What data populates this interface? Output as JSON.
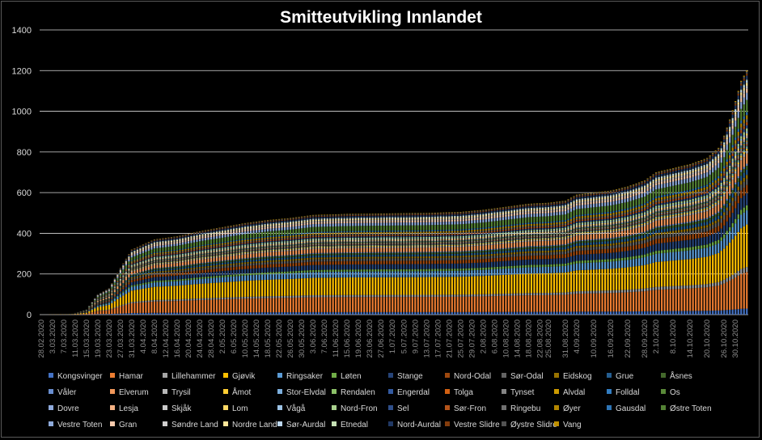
{
  "chart_data": {
    "type": "bar",
    "stacked": true,
    "title": "Smitteutvikling Innlandet",
    "xlabel": "",
    "ylabel": "",
    "ylim": [
      0,
      1400
    ],
    "yticks": [
      0,
      200,
      400,
      600,
      800,
      1000,
      1200,
      1400
    ],
    "grid": "horizontal",
    "legend_position": "bottom",
    "x_start": "2020-02-28",
    "x_end": "2020-11-03",
    "xtick_labels": [
      "28.02.2020",
      "3.03.2020",
      "7.03.2020",
      "11.03.2020",
      "15.03.2020",
      "19.03.2020",
      "23.03.2020",
      "27.03.2020",
      "31.03.2020",
      "4.04.2020",
      "8.04.2020",
      "12.04.2020",
      "16.04.2020",
      "20.04.2020",
      "24.04.2020",
      "28.04.2020",
      "2.05.2020",
      "6.05.2020",
      "10.05.2020",
      "14.05.2020",
      "18.05.2020",
      "22.05.2020",
      "26.05.2020",
      "30.05.2020",
      "3.06.2020",
      "7.06.2020",
      "11.06.2020",
      "15.06.2020",
      "19.06.2020",
      "23.06.2020",
      "27.06.2020",
      "1.07.2020",
      "5.07.2020",
      "9.07.2020",
      "13.07.2020",
      "17.07.2020",
      "21.07.2020",
      "25.07.2020",
      "29.07.2020",
      "2.08.2020",
      "6.08.2020",
      "10.08.2020",
      "14.08.2020",
      "18.08.2020",
      "22.08.2020",
      "25.08.2020",
      "31.08.2020",
      "4.09.2020",
      "10.09.2020",
      "16.09.2020",
      "22.09.2020",
      "28.09.2020",
      "2.10.2020",
      "8.10.2020",
      "14.10.2020",
      "20.10.2020",
      "26.10.2020",
      "30.10.2020"
    ],
    "total_cumulative_cases": [
      {
        "date": "2020-02-28",
        "value": 0
      },
      {
        "date": "2020-03-10",
        "value": 5
      },
      {
        "date": "2020-03-15",
        "value": 25
      },
      {
        "date": "2020-03-19",
        "value": 100
      },
      {
        "date": "2020-03-23",
        "value": 130
      },
      {
        "date": "2020-03-27",
        "value": 230
      },
      {
        "date": "2020-03-31",
        "value": 320
      },
      {
        "date": "2020-04-04",
        "value": 345
      },
      {
        "date": "2020-04-08",
        "value": 370
      },
      {
        "date": "2020-04-16",
        "value": 385
      },
      {
        "date": "2020-04-24",
        "value": 410
      },
      {
        "date": "2020-05-02",
        "value": 430
      },
      {
        "date": "2020-05-10",
        "value": 450
      },
      {
        "date": "2020-05-18",
        "value": 465
      },
      {
        "date": "2020-05-26",
        "value": 475
      },
      {
        "date": "2020-06-03",
        "value": 490
      },
      {
        "date": "2020-06-15",
        "value": 495
      },
      {
        "date": "2020-07-01",
        "value": 498
      },
      {
        "date": "2020-07-13",
        "value": 500
      },
      {
        "date": "2020-07-25",
        "value": 505
      },
      {
        "date": "2020-08-02",
        "value": 515
      },
      {
        "date": "2020-08-10",
        "value": 530
      },
      {
        "date": "2020-08-18",
        "value": 545
      },
      {
        "date": "2020-08-25",
        "value": 550
      },
      {
        "date": "2020-08-31",
        "value": 560
      },
      {
        "date": "2020-09-04",
        "value": 590
      },
      {
        "date": "2020-09-10",
        "value": 600
      },
      {
        "date": "2020-09-16",
        "value": 610
      },
      {
        "date": "2020-09-22",
        "value": 630
      },
      {
        "date": "2020-09-28",
        "value": 660
      },
      {
        "date": "2020-10-02",
        "value": 700
      },
      {
        "date": "2020-10-08",
        "value": 720
      },
      {
        "date": "2020-10-14",
        "value": 740
      },
      {
        "date": "2020-10-20",
        "value": 770
      },
      {
        "date": "2020-10-24",
        "value": 820
      },
      {
        "date": "2020-10-26",
        "value": 880
      },
      {
        "date": "2020-10-28",
        "value": 960
      },
      {
        "date": "2020-10-30",
        "value": 1050
      },
      {
        "date": "2020-11-01",
        "value": 1150
      },
      {
        "date": "2020-11-03",
        "value": 1200
      }
    ],
    "series": [
      {
        "name": "Kongsvinger",
        "color": "#4472c4",
        "final": 30
      },
      {
        "name": "Hamar",
        "color": "#ed7d31",
        "final": 180
      },
      {
        "name": "Lillehammer",
        "color": "#a5a5a5",
        "final": 25
      },
      {
        "name": "Gjøvik",
        "color": "#ffc000",
        "final": 210
      },
      {
        "name": "Ringsaker",
        "color": "#5b9bd5",
        "final": 70
      },
      {
        "name": "Løten",
        "color": "#70ad47",
        "final": 25
      },
      {
        "name": "Stange",
        "color": "#264478",
        "final": 60
      },
      {
        "name": "Nord-Odal",
        "color": "#9e480e",
        "final": 40
      },
      {
        "name": "Sør-Odal",
        "color": "#636363",
        "final": 30
      },
      {
        "name": "Eidskog",
        "color": "#997300",
        "final": 20
      },
      {
        "name": "Grue",
        "color": "#255e91",
        "final": 25
      },
      {
        "name": "Åsnes",
        "color": "#43682b",
        "final": 20
      },
      {
        "name": "Våler",
        "color": "#698ed0",
        "final": 10
      },
      {
        "name": "Elverum",
        "color": "#f1975a",
        "final": 50
      },
      {
        "name": "Trysil",
        "color": "#b7b7b7",
        "final": 15
      },
      {
        "name": "Åmot",
        "color": "#ffcd33",
        "final": 10
      },
      {
        "name": "Stor-Elvdal",
        "color": "#7cafdd",
        "final": 5
      },
      {
        "name": "Rendalen",
        "color": "#8cc168",
        "final": 5
      },
      {
        "name": "Engerdal",
        "color": "#335aa1",
        "final": 5
      },
      {
        "name": "Tolga",
        "color": "#d26012",
        "final": 5
      },
      {
        "name": "Tynset",
        "color": "#848484",
        "final": 15
      },
      {
        "name": "Alvdal",
        "color": "#cc9a00",
        "final": 5
      },
      {
        "name": "Folldal",
        "color": "#327dc2",
        "final": 5
      },
      {
        "name": "Os",
        "color": "#5a8a39",
        "final": 5
      },
      {
        "name": "Dovre",
        "color": "#8faadc",
        "final": 5
      },
      {
        "name": "Lesja",
        "color": "#f4b183",
        "final": 5
      },
      {
        "name": "Skjåk",
        "color": "#c9c9c9",
        "final": 5
      },
      {
        "name": "Lom",
        "color": "#ffd966",
        "final": 10
      },
      {
        "name": "Vågå",
        "color": "#9dc3e6",
        "final": 10
      },
      {
        "name": "Nord-Fron",
        "color": "#a9d18e",
        "final": 15
      },
      {
        "name": "Sel",
        "color": "#2f4f8a",
        "final": 15
      },
      {
        "name": "Sør-Fron",
        "color": "#b4541a",
        "final": 15
      },
      {
        "name": "Ringebu",
        "color": "#707070",
        "final": 15
      },
      {
        "name": "Øyer",
        "color": "#b38600",
        "final": 20
      },
      {
        "name": "Gausdal",
        "color": "#2e75b6",
        "final": 15
      },
      {
        "name": "Østre Toten",
        "color": "#548235",
        "final": 60
      },
      {
        "name": "Vestre Toten",
        "color": "#8eaadb",
        "final": 35
      },
      {
        "name": "Gran",
        "color": "#f8cbad",
        "final": 20
      },
      {
        "name": "Søndre Land",
        "color": "#d0cece",
        "final": 15
      },
      {
        "name": "Nordre Land",
        "color": "#ffe699",
        "final": 15
      },
      {
        "name": "Sør-Aurdal",
        "color": "#bdd7ee",
        "final": 10
      },
      {
        "name": "Etnedal",
        "color": "#c5e0b4",
        "final": 5
      },
      {
        "name": "Nord-Aurdal",
        "color": "#203864",
        "final": 20
      },
      {
        "name": "Vestre Slidre",
        "color": "#843c0c",
        "final": 10
      },
      {
        "name": "Øystre Slidre",
        "color": "#525252",
        "final": 10
      },
      {
        "name": "Vang",
        "color": "#bf9000",
        "final": 5
      }
    ]
  }
}
